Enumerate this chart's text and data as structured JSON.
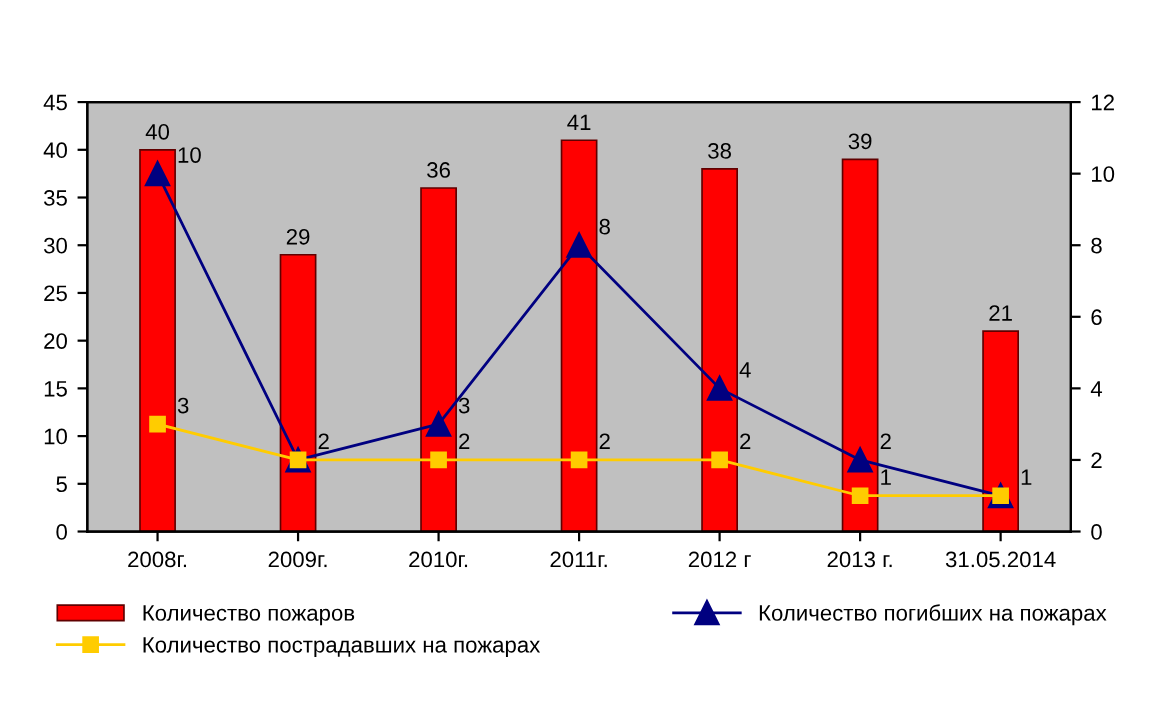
{
  "chart_data": {
    "type": "bar",
    "categories": [
      "2008г.",
      "2009г.",
      "2010г.",
      "2011г.",
      "2012 г",
      "2013 г.",
      "31.05.2014"
    ],
    "series": [
      {
        "name": "Количество пожаров",
        "color": "#ff0000",
        "values": [
          40,
          29,
          36,
          41,
          38,
          39,
          21
        ],
        "value_labels": [
          "40",
          "29",
          "36",
          "41",
          "38",
          "39",
          "21"
        ]
      },
      {
        "name": "Количество погибших на пожарах",
        "type": "line",
        "axis": "y2",
        "marker": "triangle",
        "color": "#000080",
        "values": [
          10,
          2,
          3,
          8,
          4,
          2,
          1
        ],
        "value_labels": [
          "10",
          null,
          "3",
          "8",
          "4",
          "2",
          null
        ]
      },
      {
        "name": "Количество пострадавших на пожарах",
        "type": "line",
        "axis": "y2",
        "marker": "square",
        "color": "#ffcc00",
        "values": [
          3,
          2,
          2,
          2,
          2,
          1,
          1
        ],
        "value_labels": [
          "3",
          "2",
          "2",
          "2",
          "2",
          "1",
          "1"
        ]
      }
    ],
    "ylim": [
      0,
      45
    ],
    "yticks": [
      0,
      5,
      10,
      15,
      20,
      25,
      30,
      35,
      40,
      45
    ],
    "y2lim": [
      0,
      12
    ],
    "y2ticks": [
      0,
      2,
      4,
      6,
      8,
      10,
      12
    ],
    "grid": false,
    "legend": "bottom"
  }
}
